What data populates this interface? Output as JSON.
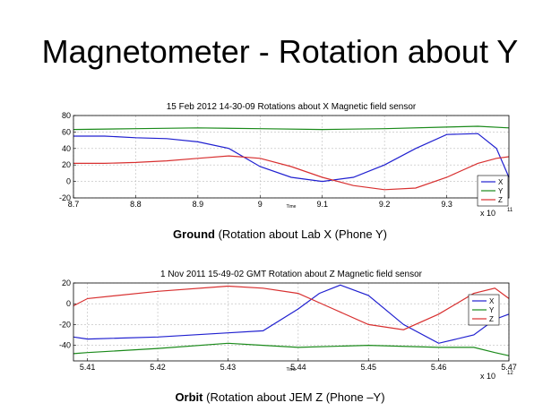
{
  "slide": {
    "title": "Magnetometer - Rotation about Y"
  },
  "captions": [
    {
      "bold": "Ground",
      "rest": " (Rotation about Lab X (Phone Y)"
    },
    {
      "bold": "Orbit",
      "rest": " (Rotation about JEM Z (Phone –Y)"
    }
  ],
  "colors": {
    "X": "#2020d0",
    "Y": "#1a8a1a",
    "Z": "#d83030"
  },
  "chart_data": [
    {
      "type": "line",
      "title": "15 Feb 2012 14-30-09 Rotations about X Magnetic field sensor",
      "xlabel": "Time",
      "ylabel": "",
      "x_multiplier": "x 10",
      "x_exponent": "11",
      "xlim": [
        8.7,
        9.4
      ],
      "ylim": [
        -20,
        80
      ],
      "x_ticks": [
        8.7,
        8.8,
        8.9,
        9,
        9.1,
        9.2,
        9.3
      ],
      "x_tick_labels": [
        "8.7",
        "8.8",
        "8.9",
        "9",
        "9.1",
        "9.2",
        "9.3"
      ],
      "y_ticks": [
        -20,
        0,
        20,
        40,
        60,
        80
      ],
      "y_tick_labels": [
        "-20",
        "0",
        "20",
        "40",
        "60",
        "80"
      ],
      "grid": true,
      "legend_position": "bottom-right",
      "series": [
        {
          "name": "X",
          "color": "#2020d0",
          "x": [
            8.7,
            8.75,
            8.8,
            8.85,
            8.9,
            8.95,
            9.0,
            9.05,
            9.1,
            9.15,
            9.2,
            9.25,
            9.3,
            9.35,
            9.38,
            9.4
          ],
          "y": [
            55,
            55,
            53,
            52,
            48,
            40,
            18,
            5,
            0,
            5,
            20,
            40,
            57,
            58,
            40,
            5
          ]
        },
        {
          "name": "Y",
          "color": "#1a8a1a",
          "x": [
            8.7,
            8.8,
            8.9,
            9.0,
            9.1,
            9.2,
            9.3,
            9.35,
            9.4
          ],
          "y": [
            63,
            64,
            65,
            64,
            63,
            64,
            66,
            67,
            65
          ]
        },
        {
          "name": "Z",
          "color": "#d83030",
          "x": [
            8.7,
            8.75,
            8.8,
            8.85,
            8.9,
            8.95,
            9.0,
            9.05,
            9.1,
            9.15,
            9.2,
            9.25,
            9.3,
            9.35,
            9.38,
            9.4
          ],
          "y": [
            22,
            22,
            23,
            25,
            28,
            31,
            28,
            18,
            5,
            -5,
            -10,
            -8,
            5,
            22,
            28,
            30
          ]
        }
      ]
    },
    {
      "type": "line",
      "title": "1 Nov 2011 15-49-02 GMT Rotation about Z Magnetic field sensor",
      "xlabel": "Time",
      "ylabel": "",
      "x_multiplier": "x 10",
      "x_exponent": "12",
      "xlim": [
        5.408,
        5.47
      ],
      "ylim": [
        -55,
        20
      ],
      "x_ticks": [
        5.41,
        5.42,
        5.43,
        5.44,
        5.45,
        5.46,
        5.47
      ],
      "x_tick_labels": [
        "5.41",
        "5.42",
        "5.43",
        "5.44",
        "5.45",
        "5.46",
        "5.47"
      ],
      "y_ticks": [
        -40,
        -20,
        0,
        20
      ],
      "y_tick_labels": [
        "-40",
        "-20",
        "0",
        "20"
      ],
      "grid": true,
      "legend_position": "top-right",
      "series": [
        {
          "name": "X",
          "color": "#2020d0",
          "x": [
            5.408,
            5.41,
            5.42,
            5.43,
            5.435,
            5.44,
            5.443,
            5.446,
            5.45,
            5.455,
            5.46,
            5.465,
            5.468,
            5.47
          ],
          "y": [
            -32,
            -34,
            -32,
            -28,
            -26,
            -5,
            10,
            18,
            8,
            -20,
            -38,
            -30,
            -15,
            -10
          ]
        },
        {
          "name": "Y",
          "color": "#1a8a1a",
          "x": [
            5.408,
            5.41,
            5.42,
            5.43,
            5.435,
            5.44,
            5.45,
            5.46,
            5.465,
            5.468,
            5.47
          ],
          "y": [
            -48,
            -47,
            -43,
            -38,
            -40,
            -42,
            -40,
            -42,
            -42,
            -47,
            -50
          ]
        },
        {
          "name": "Z",
          "color": "#d83030",
          "x": [
            5.408,
            5.41,
            5.42,
            5.43,
            5.435,
            5.44,
            5.445,
            5.45,
            5.455,
            5.46,
            5.465,
            5.468,
            5.47
          ],
          "y": [
            -2,
            5,
            12,
            17,
            15,
            10,
            -5,
            -20,
            -25,
            -10,
            10,
            15,
            5
          ]
        }
      ]
    }
  ]
}
